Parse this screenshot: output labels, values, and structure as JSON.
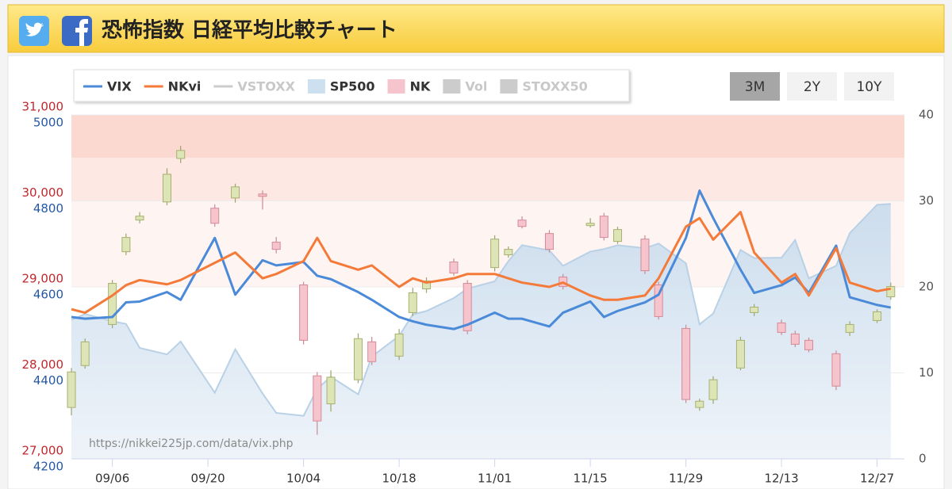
{
  "chart_data": {
    "type": "combo",
    "title": "恐怖指数 日経平均比較チャート",
    "source": "https://nikkei225jp.com/data/vix.php",
    "range_buttons": [
      {
        "label": "3M",
        "active": true
      },
      {
        "label": "2Y",
        "active": false
      },
      {
        "label": "10Y",
        "active": false
      }
    ],
    "x": [
      "08/31",
      "09/02",
      "09/06",
      "09/08",
      "09/10",
      "09/14",
      "09/16",
      "09/21",
      "09/24",
      "09/28",
      "09/30",
      "10/04",
      "10/06",
      "10/08",
      "10/12",
      "10/14",
      "10/18",
      "10/20",
      "10/22",
      "10/26",
      "10/28",
      "11/01",
      "11/03",
      "11/05",
      "11/09",
      "11/11",
      "11/15",
      "11/17",
      "11/19",
      "11/23",
      "11/25",
      "11/29",
      "12/01",
      "12/03",
      "12/07",
      "12/09",
      "12/13",
      "12/15",
      "12/17",
      "12/21",
      "12/23",
      "12/27",
      "12/29"
    ],
    "xlim": [
      "08/31",
      "12/31"
    ],
    "xticks": [
      "09/06",
      "09/20",
      "10/04",
      "10/18",
      "11/01",
      "11/15",
      "11/29",
      "12/13",
      "12/27"
    ],
    "ylim": [
      27000,
      31000
    ],
    "yticks": [
      {
        "value": 27000,
        "label": "27,000"
      },
      {
        "value": 28000,
        "label": "28,000"
      },
      {
        "value": 29000,
        "label": "29,000"
      },
      {
        "value": 30000,
        "label": "30,000"
      },
      {
        "value": 31000,
        "label": "31,000"
      }
    ],
    "y3lim": [
      4200,
      5000
    ],
    "y3ticks": [
      4200,
      4400,
      4600,
      4800,
      5000
    ],
    "y2lim": [
      0,
      40
    ],
    "y2ticks": [
      0,
      10,
      20,
      30,
      40
    ],
    "grid": true,
    "plot_bands": [
      {
        "from": 35,
        "to": 40,
        "color": "#fbd8d0"
      },
      {
        "from": 30,
        "to": 35,
        "color": "#fde8e3"
      },
      {
        "from": 20,
        "to": 30,
        "color": "#fef5f2"
      }
    ],
    "series": [
      {
        "name": "VIX",
        "type": "line",
        "axis": "y2",
        "color": "#4a8ad8",
        "visible": true,
        "values": [
          16.5,
          16.3,
          16.5,
          18.2,
          18.3,
          19.4,
          18.5,
          25.7,
          19.1,
          23.1,
          22.5,
          22.9,
          21.3,
          20.9,
          19.4,
          18.5,
          16.5,
          16.0,
          15.6,
          15.1,
          15.6,
          17.0,
          16.3,
          16.3,
          15.4,
          17.0,
          18.3,
          16.5,
          17.2,
          18.2,
          19.1,
          25.7,
          31.2,
          28.0,
          22.0,
          19.3,
          20.2,
          21.1,
          19.3,
          24.8,
          18.8,
          17.9,
          17.6
        ]
      },
      {
        "name": "NKvi",
        "type": "line",
        "axis": "y2",
        "color": "#f47a3a",
        "visible": true,
        "values": [
          17.4,
          17.0,
          19.0,
          20.2,
          20.8,
          20.3,
          20.8,
          22.8,
          24.0,
          21.0,
          21.5,
          23.0,
          25.7,
          23.0,
          22.0,
          22.5,
          20.0,
          21.0,
          20.5,
          21.0,
          21.5,
          21.5,
          21.0,
          20.5,
          20.0,
          20.5,
          19.0,
          18.5,
          18.5,
          19.0,
          21.0,
          27.0,
          28.0,
          25.5,
          28.7,
          24.0,
          20.5,
          21.5,
          19.0,
          24.5,
          20.5,
          19.5,
          19.8
        ]
      },
      {
        "name": "VSTOXX",
        "type": "line",
        "axis": "y2",
        "color": "#c9ced6",
        "visible": false
      },
      {
        "name": "SP500",
        "type": "area",
        "axis": "y3",
        "color": "#cde0ef",
        "visible": true,
        "values": [
          4523,
          4537,
          4520,
          4514,
          4458,
          4443,
          4473,
          4354,
          4455,
          4352,
          4307,
          4300,
          4363,
          4391,
          4350,
          4438,
          4486,
          4536,
          4544,
          4574,
          4596,
          4613,
          4660,
          4697,
          4685,
          4649,
          4682,
          4688,
          4697,
          4690,
          4701,
          4655,
          4513,
          4538,
          4686,
          4667,
          4668,
          4709,
          4620,
          4649,
          4725,
          4791,
          4793
        ]
      },
      {
        "name": "NK",
        "type": "candlestick",
        "axis": "y",
        "color": "#f6c4cc",
        "up_color": "#dde5b6",
        "visible": true,
        "open": [
          27598,
          28085,
          28563,
          29409,
          29778,
          29988,
          30494,
          29915,
          30034,
          30080,
          29520,
          29023,
          27966,
          27640,
          27920,
          28361,
          28195,
          28701,
          28977,
          29290,
          29041,
          29225,
          29373,
          29777,
          29621,
          29115,
          29713,
          29823,
          29529,
          29556,
          29023,
          28517,
          27598,
          27690,
          28057,
          28701,
          28581,
          28453,
          28379,
          28223,
          28471,
          28609,
          28885
        ],
        "high": [
          28057,
          28400,
          29080,
          29620,
          29870,
          30380,
          30640,
          29960,
          30200,
          30120,
          29580,
          29060,
          28010,
          28030,
          28460,
          28420,
          28510,
          28990,
          29110,
          29330,
          29080,
          29600,
          29470,
          29820,
          29660,
          29150,
          29800,
          29860,
          29700,
          29600,
          29060,
          28560,
          27700,
          27960,
          28420,
          28800,
          28620,
          28490,
          28410,
          28260,
          28600,
          28740,
          29050
        ],
        "low": [
          27506,
          28050,
          28520,
          29370,
          29740,
          29950,
          30440,
          29700,
          29980,
          29900,
          29390,
          28330,
          27280,
          27550,
          27880,
          28090,
          28150,
          28660,
          28930,
          29130,
          28450,
          29180,
          29340,
          29680,
          29400,
          28970,
          29690,
          29540,
          29500,
          29150,
          28620,
          27650,
          27560,
          27640,
          28030,
          28660,
          28440,
          28300,
          28240,
          27800,
          28430,
          28580,
          28850
        ],
        "close": [
          28011,
          28361,
          29041,
          29575,
          29823,
          30310,
          30586,
          29740,
          30163,
          30053,
          29437,
          28379,
          27441,
          27950,
          28398,
          28131,
          28453,
          28931,
          29069,
          29161,
          28490,
          29556,
          29437,
          29703,
          29437,
          29005,
          29740,
          29575,
          29667,
          29188,
          28655,
          27690,
          27671,
          27920,
          28379,
          28765,
          28471,
          28333,
          28269,
          27846,
          28563,
          28710,
          29005
        ]
      },
      {
        "name": "Vol",
        "type": "column",
        "color": "#c8c8c8",
        "visible": false
      },
      {
        "name": "STOXX50",
        "type": "area",
        "color": "#c8c8c8",
        "visible": false
      }
    ]
  }
}
